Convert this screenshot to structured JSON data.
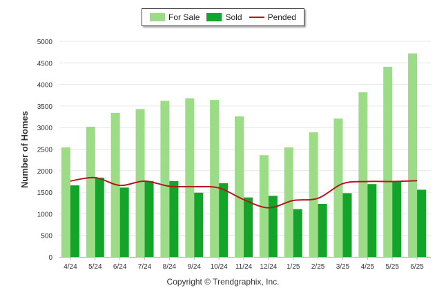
{
  "legend": {
    "for_sale": "For Sale",
    "sold": "Sold",
    "pended": "Pended"
  },
  "footer": {
    "copyright": "Copyright © Trendgraphix, Inc."
  },
  "colors": {
    "for_sale": "#9ddc86",
    "sold": "#12a52a",
    "pended": "#b3161c",
    "grid": "#e6e6e6"
  },
  "chart_data": {
    "type": "bar",
    "title": "",
    "xlabel": "",
    "ylabel": "Number of Homes",
    "ylim": [
      0,
      5000
    ],
    "yticks": [
      0,
      500,
      1000,
      1500,
      2000,
      2500,
      3000,
      3500,
      4000,
      4500,
      5000
    ],
    "grid": true,
    "legend_position": "top-center",
    "categories": [
      "4/24",
      "5/24",
      "6/24",
      "7/24",
      "8/24",
      "9/24",
      "10/24",
      "11/24",
      "12/24",
      "1/25",
      "2/25",
      "3/25",
      "4/25",
      "5/25",
      "6/25"
    ],
    "series": [
      {
        "name": "For Sale",
        "kind": "bar",
        "values": [
          2540,
          3020,
          3340,
          3430,
          3620,
          3680,
          3640,
          3260,
          2360,
          2540,
          2890,
          3210,
          3820,
          4410,
          4720
        ]
      },
      {
        "name": "Sold",
        "kind": "bar",
        "values": [
          1660,
          1840,
          1610,
          1760,
          1760,
          1490,
          1710,
          1380,
          1420,
          1110,
          1230,
          1480,
          1690,
          1750,
          1560
        ]
      },
      {
        "name": "Pended",
        "kind": "line",
        "values": [
          1760,
          1840,
          1660,
          1760,
          1640,
          1630,
          1600,
          1330,
          1140,
          1310,
          1360,
          1700,
          1750,
          1750,
          1770
        ]
      }
    ]
  }
}
